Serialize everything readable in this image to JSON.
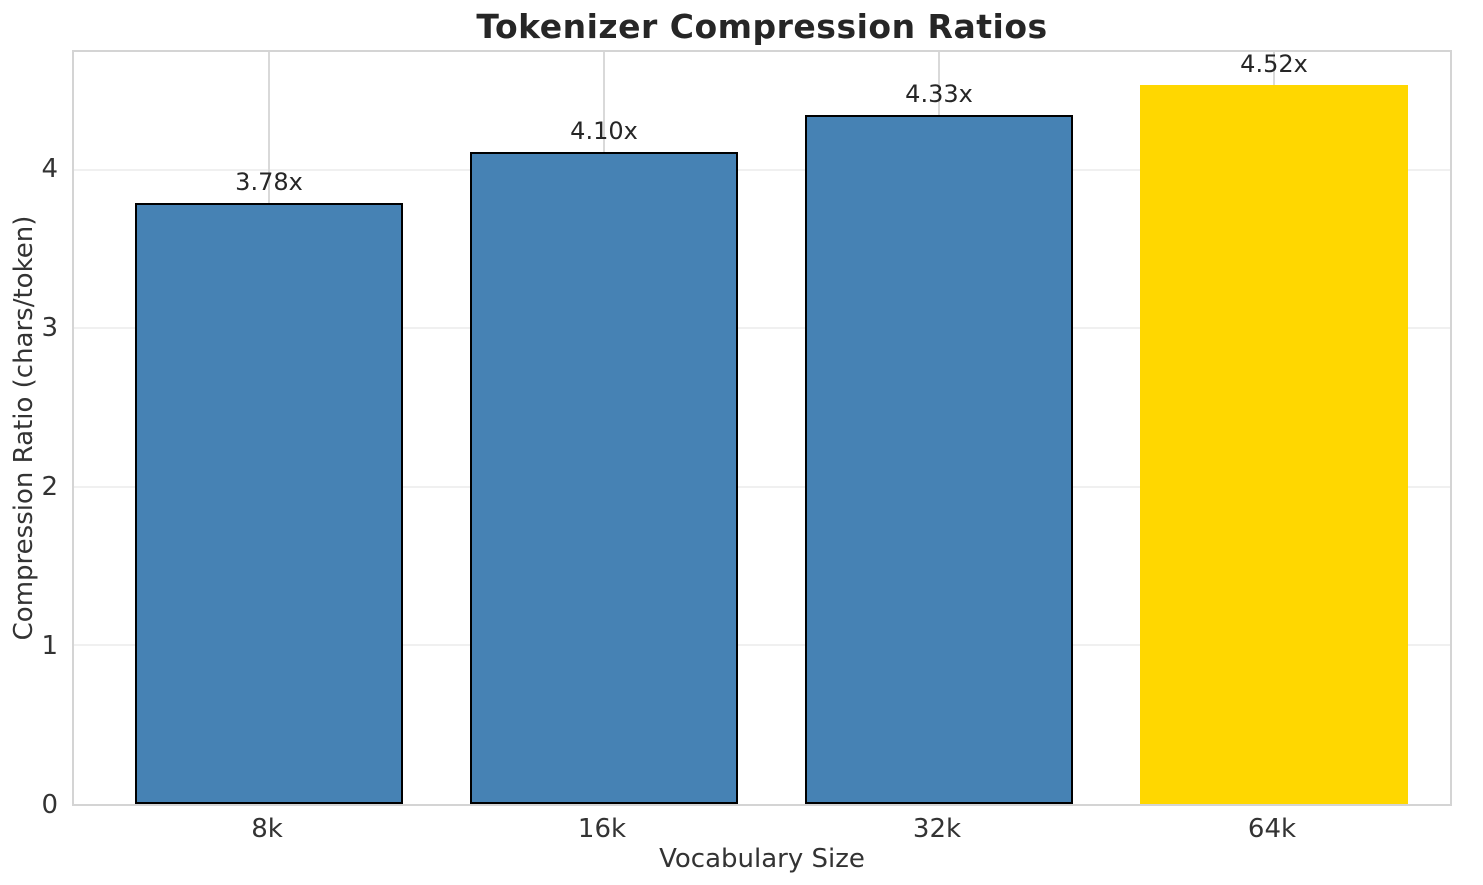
{
  "title": "Tokenizer Compression Ratios",
  "chart_data": {
    "type": "bar",
    "title": "Tokenizer Compression Ratios",
    "xlabel": "Vocabulary Size",
    "ylabel": "Compression Ratio (chars/token)",
    "categories": [
      "8k",
      "16k",
      "32k",
      "64k"
    ],
    "values": [
      3.78,
      4.1,
      4.33,
      4.52
    ],
    "bar_labels": [
      "3.78x",
      "4.10x",
      "4.33x",
      "4.52x"
    ],
    "yticks": [
      0,
      1,
      2,
      3,
      4
    ],
    "ylim": [
      0,
      4.754
    ],
    "grid": true,
    "legend": "none",
    "bar_colors": [
      "#4682B4",
      "#4682B4",
      "#4682B4",
      "#FFD700"
    ],
    "bar_edge_colors": [
      "#000000",
      "#000000",
      "#000000",
      "none"
    ],
    "highlight_index": 3
  },
  "colors": {
    "bar_blue": "#4682B4",
    "bar_gold": "#FFD700",
    "bar_edge": "#000000",
    "grid_horizontal": "#f0f0f0",
    "grid_vertical": "#d9d9d9",
    "spine": "#d4d4d4",
    "title_text": "#262626",
    "tick_text": "#333333"
  }
}
